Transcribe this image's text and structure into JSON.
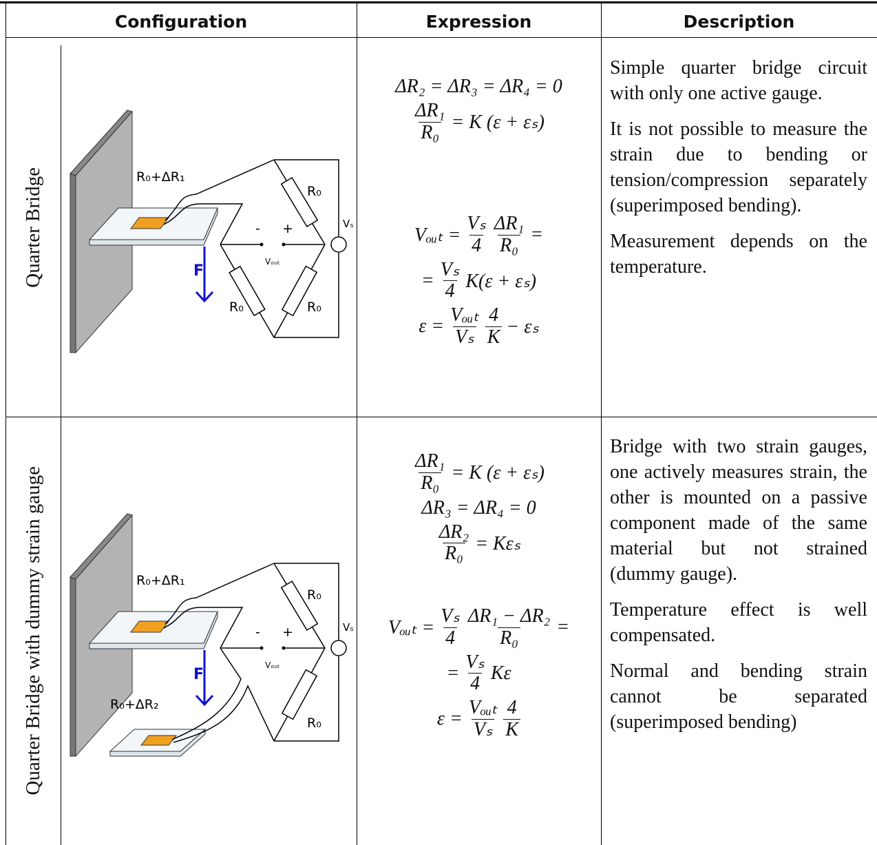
{
  "table": {
    "headers": [
      "Configuration",
      "Expression",
      "Description"
    ],
    "rows": [
      {
        "label": "Quarter Bridge",
        "diagram_labels": [
          "R₀+ΔR₁",
          "R₀",
          "R₀",
          "R₀",
          "Vₛ",
          "-",
          "+",
          "Vₒᵤₜ",
          "F"
        ],
        "expressions": [
          [
            [
              "ΔR₂ = ΔR₃ = ΔR₄ = 0"
            ],
            [
              {
                "num": "ΔR₁",
                "den": "R₀"
              },
              "= K (ε + εₛ)"
            ]
          ],
          [
            [
              "Vₒᵤₜ =",
              {
                "num": "Vₛ",
                "den": "4"
              },
              {
                "num": "ΔR₁",
                "den": "R₀"
              },
              "="
            ],
            [
              "=",
              {
                "num": "Vₛ",
                "den": "4"
              },
              "K(ε + εₛ)"
            ],
            [
              "ε =",
              {
                "num": "Vₒᵤₜ",
                "den": "Vₛ"
              },
              {
                "num": "4",
                "den": "K"
              },
              "− εₛ"
            ]
          ]
        ],
        "description": [
          "Simple quarter bridge circuit with only one active gauge.",
          "It is not possible to measure the strain due to bending or tension/compression separately (superimposed bending).",
          "Measurement depends on the temperature."
        ]
      },
      {
        "label": "Quarter Bridge with dummy strain gauge",
        "diagram_labels": [
          "R₀+ΔR₁",
          "R₀",
          "R₀",
          "Vₛ",
          "-",
          "+",
          "Vₒᵤₜ",
          "F",
          "R₀+ΔR₂"
        ],
        "expressions": [
          [
            [
              {
                "num": "ΔR₁",
                "den": "R₀"
              },
              "= K (ε + εₛ)"
            ],
            [
              "ΔR₃ = ΔR₄ = 0"
            ],
            [
              {
                "num": "ΔR₂",
                "den": "R₀"
              },
              "= Kεₛ"
            ]
          ],
          [
            [
              "Vₒᵤₜ =",
              {
                "num": "Vₛ",
                "den": "4"
              },
              {
                "num": "ΔR₁ − ΔR₂",
                "den": "R₀"
              },
              "="
            ],
            [
              "=",
              {
                "num": "Vₛ",
                "den": "4"
              },
              "Kε"
            ],
            [
              "ε =",
              {
                "num": "Vₒᵤₜ",
                "den": "Vₛ"
              },
              {
                "num": "4",
                "den": "K"
              }
            ]
          ]
        ],
        "description": [
          "Bridge with two strain gauges, one actively measures strain, the other is mounted on a passive component made of the same material but not strained (dummy gauge).",
          "Temperature effect is well compensated.",
          "Normal and bending strain cannot be separated (superimposed bending)"
        ]
      }
    ]
  }
}
